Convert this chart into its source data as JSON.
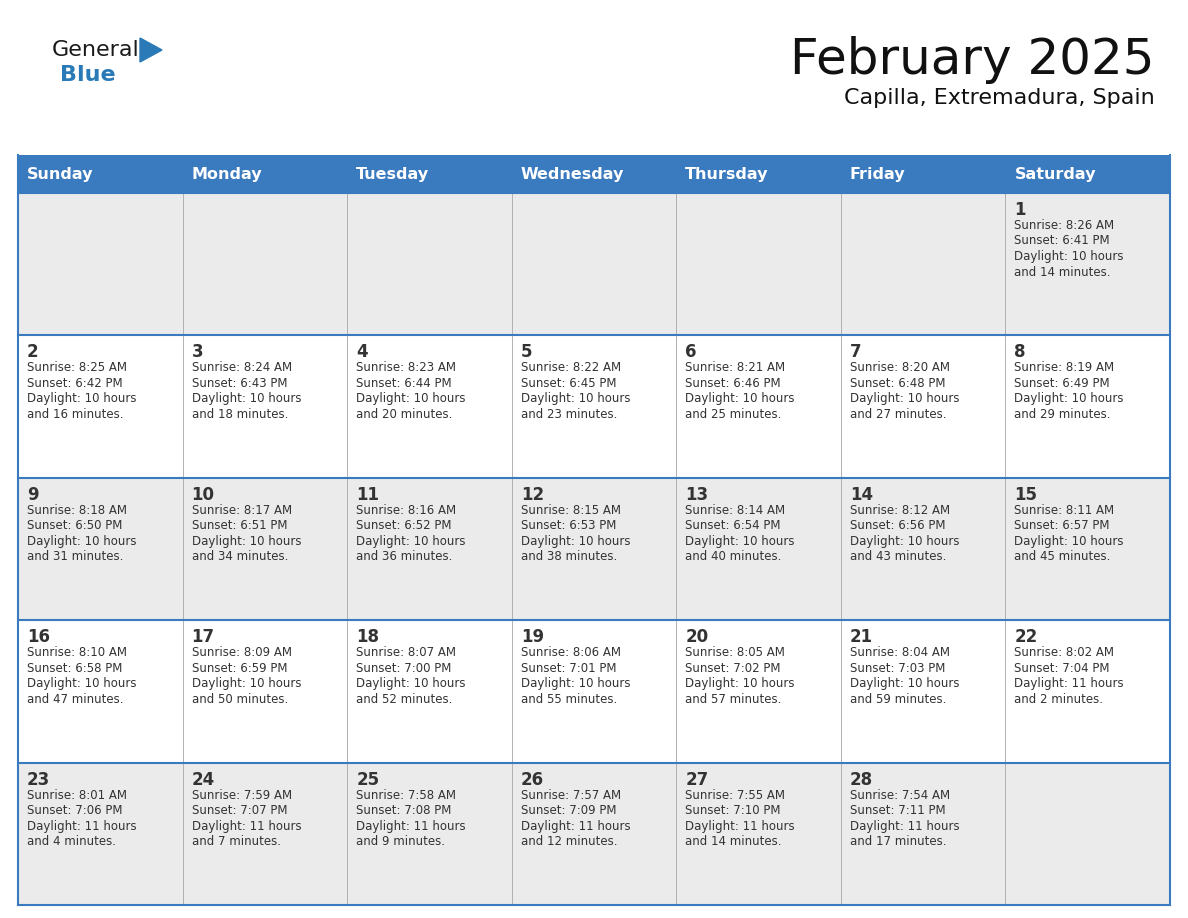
{
  "title": "February 2025",
  "subtitle": "Capilla, Extremadura, Spain",
  "header_bg_color": "#3a7abf",
  "header_text_color": "#ffffff",
  "cell_bg_color_row0": "#ebebeb",
  "cell_bg_color_row1": "#ffffff",
  "cell_bg_color_row2": "#ebebeb",
  "cell_bg_color_row3": "#ffffff",
  "cell_bg_color_row4": "#ebebeb",
  "cell_border_color": "#3a7abf",
  "text_color": "#333333",
  "days_of_week": [
    "Sunday",
    "Monday",
    "Tuesday",
    "Wednesday",
    "Thursday",
    "Friday",
    "Saturday"
  ],
  "logo_general_color": "#1a1a1a",
  "logo_blue_color": "#2a7ab8",
  "calendar_data": [
    [
      null,
      null,
      null,
      null,
      null,
      null,
      1
    ],
    [
      2,
      3,
      4,
      5,
      6,
      7,
      8
    ],
    [
      9,
      10,
      11,
      12,
      13,
      14,
      15
    ],
    [
      16,
      17,
      18,
      19,
      20,
      21,
      22
    ],
    [
      23,
      24,
      25,
      26,
      27,
      28,
      null
    ]
  ],
  "sunrise_sunset": {
    "1": [
      "Sunrise: 8:26 AM",
      "Sunset: 6:41 PM",
      "Daylight: 10 hours",
      "and 14 minutes."
    ],
    "2": [
      "Sunrise: 8:25 AM",
      "Sunset: 6:42 PM",
      "Daylight: 10 hours",
      "and 16 minutes."
    ],
    "3": [
      "Sunrise: 8:24 AM",
      "Sunset: 6:43 PM",
      "Daylight: 10 hours",
      "and 18 minutes."
    ],
    "4": [
      "Sunrise: 8:23 AM",
      "Sunset: 6:44 PM",
      "Daylight: 10 hours",
      "and 20 minutes."
    ],
    "5": [
      "Sunrise: 8:22 AM",
      "Sunset: 6:45 PM",
      "Daylight: 10 hours",
      "and 23 minutes."
    ],
    "6": [
      "Sunrise: 8:21 AM",
      "Sunset: 6:46 PM",
      "Daylight: 10 hours",
      "and 25 minutes."
    ],
    "7": [
      "Sunrise: 8:20 AM",
      "Sunset: 6:48 PM",
      "Daylight: 10 hours",
      "and 27 minutes."
    ],
    "8": [
      "Sunrise: 8:19 AM",
      "Sunset: 6:49 PM",
      "Daylight: 10 hours",
      "and 29 minutes."
    ],
    "9": [
      "Sunrise: 8:18 AM",
      "Sunset: 6:50 PM",
      "Daylight: 10 hours",
      "and 31 minutes."
    ],
    "10": [
      "Sunrise: 8:17 AM",
      "Sunset: 6:51 PM",
      "Daylight: 10 hours",
      "and 34 minutes."
    ],
    "11": [
      "Sunrise: 8:16 AM",
      "Sunset: 6:52 PM",
      "Daylight: 10 hours",
      "and 36 minutes."
    ],
    "12": [
      "Sunrise: 8:15 AM",
      "Sunset: 6:53 PM",
      "Daylight: 10 hours",
      "and 38 minutes."
    ],
    "13": [
      "Sunrise: 8:14 AM",
      "Sunset: 6:54 PM",
      "Daylight: 10 hours",
      "and 40 minutes."
    ],
    "14": [
      "Sunrise: 8:12 AM",
      "Sunset: 6:56 PM",
      "Daylight: 10 hours",
      "and 43 minutes."
    ],
    "15": [
      "Sunrise: 8:11 AM",
      "Sunset: 6:57 PM",
      "Daylight: 10 hours",
      "and 45 minutes."
    ],
    "16": [
      "Sunrise: 8:10 AM",
      "Sunset: 6:58 PM",
      "Daylight: 10 hours",
      "and 47 minutes."
    ],
    "17": [
      "Sunrise: 8:09 AM",
      "Sunset: 6:59 PM",
      "Daylight: 10 hours",
      "and 50 minutes."
    ],
    "18": [
      "Sunrise: 8:07 AM",
      "Sunset: 7:00 PM",
      "Daylight: 10 hours",
      "and 52 minutes."
    ],
    "19": [
      "Sunrise: 8:06 AM",
      "Sunset: 7:01 PM",
      "Daylight: 10 hours",
      "and 55 minutes."
    ],
    "20": [
      "Sunrise: 8:05 AM",
      "Sunset: 7:02 PM",
      "Daylight: 10 hours",
      "and 57 minutes."
    ],
    "21": [
      "Sunrise: 8:04 AM",
      "Sunset: 7:03 PM",
      "Daylight: 10 hours",
      "and 59 minutes."
    ],
    "22": [
      "Sunrise: 8:02 AM",
      "Sunset: 7:04 PM",
      "Daylight: 11 hours",
      "and 2 minutes."
    ],
    "23": [
      "Sunrise: 8:01 AM",
      "Sunset: 7:06 PM",
      "Daylight: 11 hours",
      "and 4 minutes."
    ],
    "24": [
      "Sunrise: 7:59 AM",
      "Sunset: 7:07 PM",
      "Daylight: 11 hours",
      "and 7 minutes."
    ],
    "25": [
      "Sunrise: 7:58 AM",
      "Sunset: 7:08 PM",
      "Daylight: 11 hours",
      "and 9 minutes."
    ],
    "26": [
      "Sunrise: 7:57 AM",
      "Sunset: 7:09 PM",
      "Daylight: 11 hours",
      "and 12 minutes."
    ],
    "27": [
      "Sunrise: 7:55 AM",
      "Sunset: 7:10 PM",
      "Daylight: 11 hours",
      "and 14 minutes."
    ],
    "28": [
      "Sunrise: 7:54 AM",
      "Sunset: 7:11 PM",
      "Daylight: 11 hours",
      "and 17 minutes."
    ]
  }
}
